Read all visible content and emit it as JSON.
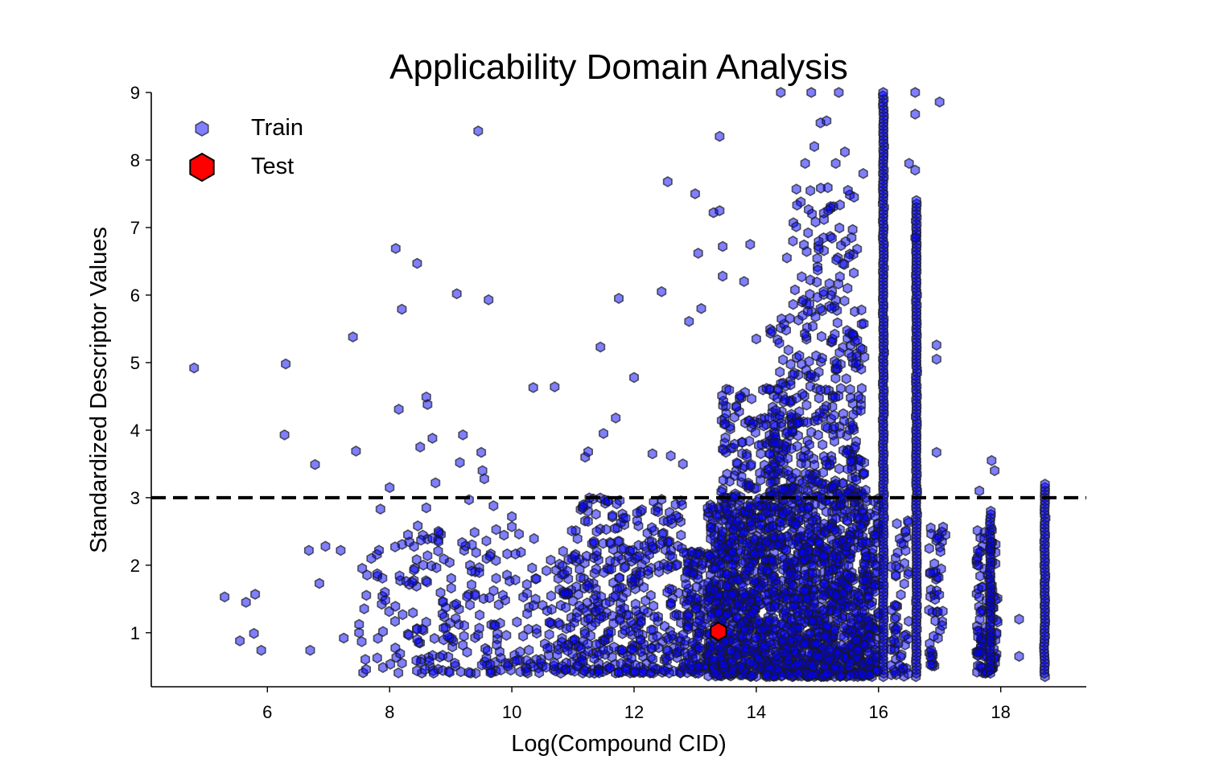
{
  "chart_data": {
    "type": "scatter",
    "title": "Applicability Domain Analysis",
    "xlabel": "Log(Compound CID)",
    "ylabel": "Standardized Descriptor Values",
    "xlim": [
      4.1,
      19.4
    ],
    "ylim": [
      0.2,
      9.0
    ],
    "x_ticks": [
      6,
      8,
      10,
      12,
      14,
      16,
      18
    ],
    "y_ticks": [
      1,
      2,
      3,
      4,
      5,
      6,
      7,
      8,
      9
    ],
    "threshold": {
      "y": 3,
      "style": "dashed",
      "color": "#000000"
    },
    "legend": {
      "position": "top-left",
      "entries": [
        "Train",
        "Test"
      ]
    },
    "grid": false,
    "series": [
      {
        "name": "Train",
        "marker": "hexagon",
        "color": "#0000ff",
        "edge_color": "#1a1a1a",
        "alpha": 0.5,
        "points": [
          [
            4.8,
            4.92
          ],
          [
            5.3,
            1.53
          ],
          [
            5.55,
            0.88
          ],
          [
            5.65,
            1.45
          ],
          [
            5.78,
            0.99
          ],
          [
            5.8,
            1.57
          ],
          [
            5.9,
            0.74
          ],
          [
            6.28,
            3.93
          ],
          [
            6.3,
            4.98
          ],
          [
            6.68,
            2.22
          ],
          [
            6.7,
            0.74
          ],
          [
            6.78,
            3.49
          ],
          [
            6.85,
            1.73
          ],
          [
            6.95,
            2.28
          ],
          [
            7.2,
            2.22
          ],
          [
            7.25,
            0.92
          ],
          [
            7.4,
            5.38
          ],
          [
            7.45,
            3.69
          ],
          [
            7.5,
            1.0
          ],
          [
            7.7,
            2.1
          ],
          [
            7.85,
            2.83
          ],
          [
            8.0,
            3.15
          ],
          [
            8.1,
            6.69
          ],
          [
            8.15,
            4.31
          ],
          [
            8.2,
            5.79
          ],
          [
            8.3,
            2.45
          ],
          [
            8.45,
            6.47
          ],
          [
            8.5,
            3.75
          ],
          [
            8.6,
            4.49
          ],
          [
            8.62,
            4.38
          ],
          [
            8.7,
            3.88
          ],
          [
            8.75,
            3.22
          ],
          [
            8.6,
            2.85
          ],
          [
            8.7,
            2.4
          ],
          [
            8.8,
            2.35
          ],
          [
            8.95,
            0.95
          ],
          [
            9.1,
            6.02
          ],
          [
            9.15,
            3.52
          ],
          [
            9.2,
            3.93
          ],
          [
            9.3,
            2.97
          ],
          [
            9.45,
            8.43
          ],
          [
            9.5,
            3.67
          ],
          [
            9.52,
            3.4
          ],
          [
            9.55,
            3.28
          ],
          [
            9.62,
            5.93
          ],
          [
            9.7,
            2.88
          ],
          [
            9.8,
            0.72
          ],
          [
            10.0,
            2.72
          ],
          [
            10.35,
            4.63
          ],
          [
            10.7,
            4.64
          ],
          [
            11.2,
            3.6
          ],
          [
            11.25,
            3.68
          ],
          [
            11.45,
            5.23
          ],
          [
            11.5,
            3.95
          ],
          [
            11.7,
            4.18
          ],
          [
            11.75,
            5.95
          ],
          [
            12.0,
            4.78
          ],
          [
            12.3,
            3.65
          ],
          [
            12.45,
            6.05
          ],
          [
            12.55,
            7.68
          ],
          [
            12.6,
            3.62
          ],
          [
            12.8,
            3.5
          ],
          [
            12.9,
            5.61
          ],
          [
            13.0,
            7.5
          ],
          [
            13.05,
            6.62
          ],
          [
            13.1,
            5.8
          ],
          [
            13.3,
            7.22
          ],
          [
            13.4,
            7.25
          ],
          [
            13.4,
            8.35
          ],
          [
            13.45,
            6.72
          ],
          [
            13.45,
            6.28
          ],
          [
            13.8,
            6.2
          ],
          [
            13.9,
            6.75
          ],
          [
            14.0,
            5.35
          ],
          [
            14.5,
            6.55
          ],
          [
            14.6,
            6.8
          ],
          [
            14.8,
            7.95
          ],
          [
            14.95,
            8.2
          ],
          [
            15.05,
            8.55
          ],
          [
            15.15,
            8.58
          ],
          [
            15.3,
            7.95
          ],
          [
            15.45,
            8.12
          ],
          [
            15.5,
            7.55
          ],
          [
            15.6,
            7.45
          ],
          [
            15.65,
            6.68
          ],
          [
            15.75,
            7.8
          ],
          [
            16.5,
            7.95
          ],
          [
            16.6,
            8.68
          ],
          [
            16.6,
            7.85
          ],
          [
            16.6,
            6.85
          ],
          [
            17.0,
            8.86
          ],
          [
            16.95,
            5.26
          ],
          [
            16.95,
            5.05
          ],
          [
            16.95,
            3.67
          ],
          [
            14.4,
            9.0
          ],
          [
            14.9,
            9.0
          ],
          [
            15.35,
            9.0
          ],
          [
            16.6,
            9.0
          ],
          [
            17.85,
            3.55
          ],
          [
            17.9,
            3.4
          ],
          [
            17.65,
            3.1
          ],
          [
            18.3,
            1.2
          ],
          [
            18.3,
            0.65
          ]
        ],
        "vertical_clusters": [
          {
            "x": 16.08,
            "y_range": [
              0.35,
              9.0
            ]
          },
          {
            "x": 16.62,
            "y_range": [
              0.35,
              7.4
            ]
          },
          {
            "x": 18.72,
            "y_range": [
              0.35,
              3.2
            ]
          },
          {
            "x": 17.83,
            "y_range": [
              0.4,
              2.8
            ]
          }
        ]
      },
      {
        "name": "Test",
        "marker": "hexagon",
        "color": "#ff0000",
        "edge_color": "#000000",
        "points": [
          [
            13.38,
            1.02
          ]
        ]
      }
    ]
  }
}
